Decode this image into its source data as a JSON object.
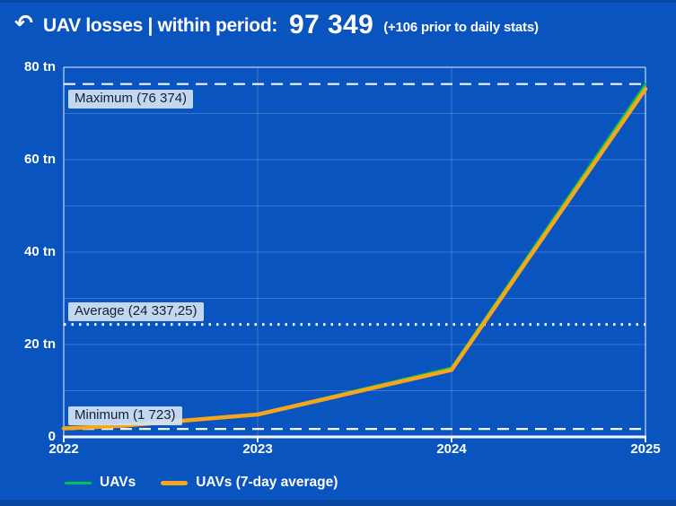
{
  "header": {
    "back_icon": "↶",
    "title": "UAV losses | within period:",
    "total": "97 349",
    "note": "(+106 prior to daily stats)"
  },
  "chart_data": {
    "type": "line",
    "title": "UAV losses | within period",
    "x_range": [
      2022,
      2025
    ],
    "y_range": [
      0,
      80000
    ],
    "y_grid_step": 10000,
    "grid": true,
    "legend_position": "bottom",
    "x_ticks": [
      {
        "value": 2022,
        "label": "2022"
      },
      {
        "value": 2023,
        "label": "2023"
      },
      {
        "value": 2024,
        "label": "2024"
      },
      {
        "value": 2025,
        "label": "2025"
      }
    ],
    "y_ticks": [
      {
        "value": 80000,
        "label": "80 tn"
      },
      {
        "value": 60000,
        "label": "60 tn"
      },
      {
        "value": 40000,
        "label": "40 tn"
      },
      {
        "value": 20000,
        "label": "20 tn"
      },
      {
        "value": 0,
        "label": "0"
      }
    ],
    "series": [
      {
        "name": "UAVs",
        "color": "#00c64f",
        "width": 2.5,
        "points": [
          {
            "x": 2022.0,
            "y": 1950
          },
          {
            "x": 2022.3,
            "y": 2500
          },
          {
            "x": 2023.0,
            "y": 5000
          },
          {
            "x": 2024.0,
            "y": 15000
          },
          {
            "x": 2025.0,
            "y": 76374
          }
        ]
      },
      {
        "name": "UAVs (7-day average)",
        "color": "#f7a61b",
        "width": 4.5,
        "points": [
          {
            "x": 2022.0,
            "y": 1850
          },
          {
            "x": 2022.3,
            "y": 2400
          },
          {
            "x": 2023.0,
            "y": 4850
          },
          {
            "x": 2024.0,
            "y": 14500
          },
          {
            "x": 2025.0,
            "y": 75300
          }
        ]
      }
    ],
    "annotations": [
      {
        "id": "maximum",
        "label": "Maximum (76 374)",
        "value": 76374,
        "line_style": "dashed",
        "label_position": "below"
      },
      {
        "id": "average",
        "label": "Average (24 337,25)",
        "value": 24337.25,
        "line_style": "dotted",
        "label_position": "above"
      },
      {
        "id": "minimum",
        "label": "Minimum (1 723)",
        "value": 1723,
        "line_style": "dashed",
        "label_position": "above"
      }
    ],
    "legend": [
      {
        "name": "UAVs",
        "color": "#00c64f"
      },
      {
        "name": "UAVs (7-day average)",
        "color": "#f7a61b"
      }
    ]
  },
  "colors": {
    "background": "#0a54bf",
    "grid": "rgba(255,255,255,0.20)",
    "border": "rgba(255,255,255,0.55)",
    "axis": "#f2f6fc",
    "stat_line": "rgba(255,255,255,0.95)",
    "annotation_bg": "#d5e3f4",
    "annotation_text": "#121f38",
    "text": "#ffffff"
  }
}
